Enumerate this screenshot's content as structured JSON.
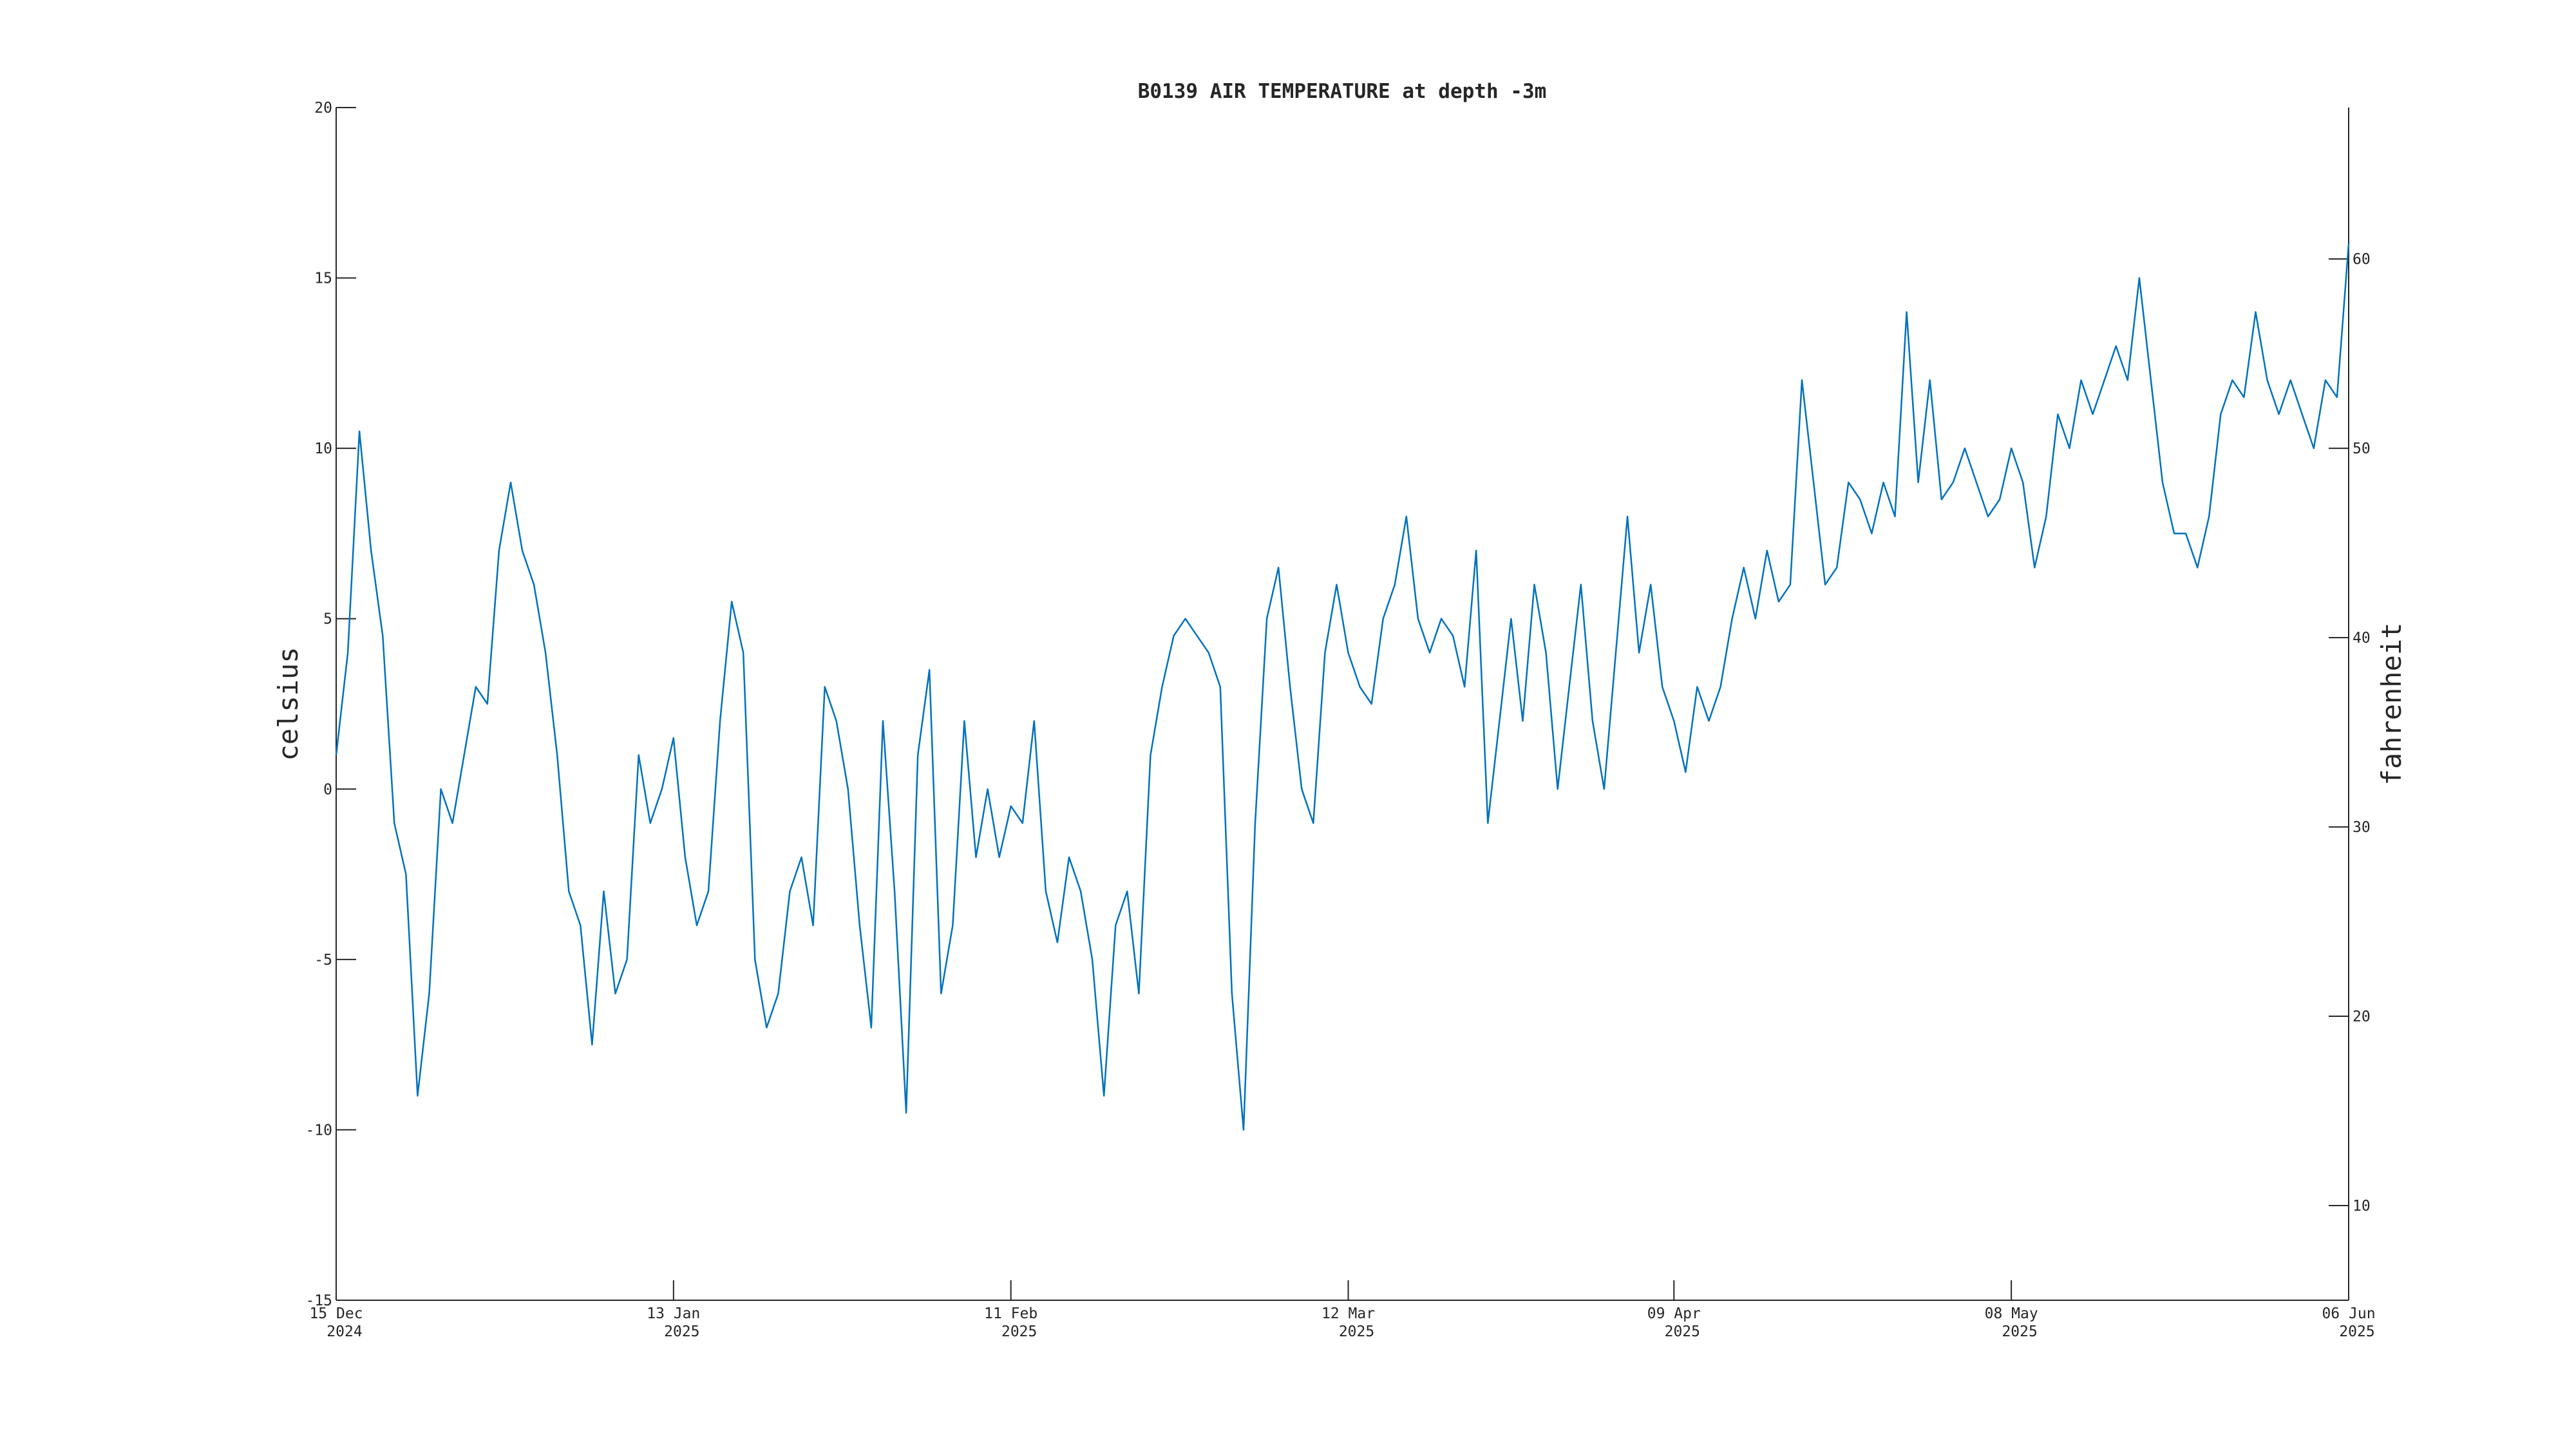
{
  "chart_data": {
    "type": "line",
    "title": "B0139 AIR TEMPERATURE at depth -3m",
    "ylabel": "celsius",
    "y2label": "fahrenheit",
    "xlim": [
      "2024-12-15",
      "2025-06-06"
    ],
    "xticks": [
      {
        "value": "2024-12-15",
        "label": "15 Dec\n2024"
      },
      {
        "value": "2025-01-13",
        "label": "13 Jan\n2025"
      },
      {
        "value": "2025-02-11",
        "label": "11 Feb\n2025"
      },
      {
        "value": "2025-03-12",
        "label": "12 Mar\n2025"
      },
      {
        "value": "2025-04-09",
        "label": "09 Apr\n2025"
      },
      {
        "value": "2025-05-08",
        "label": "08 May\n2025"
      },
      {
        "value": "2025-06-06",
        "label": "06 Jun\n2025"
      }
    ],
    "ylim": [
      -15,
      20
    ],
    "yticks": [
      -15,
      -10,
      -5,
      0,
      5,
      10,
      15,
      20
    ],
    "y2lim": [
      5,
      68
    ],
    "y2ticks": [
      10,
      20,
      30,
      40,
      50,
      60
    ],
    "x": [
      "2024-12-15",
      "2024-12-16",
      "2024-12-17",
      "2024-12-18",
      "2024-12-19",
      "2024-12-20",
      "2024-12-21",
      "2024-12-22",
      "2024-12-23",
      "2024-12-24",
      "2024-12-25",
      "2024-12-26",
      "2024-12-27",
      "2024-12-28",
      "2024-12-29",
      "2024-12-30",
      "2024-12-31",
      "2025-01-01",
      "2025-01-02",
      "2025-01-03",
      "2025-01-04",
      "2025-01-05",
      "2025-01-06",
      "2025-01-07",
      "2025-01-08",
      "2025-01-09",
      "2025-01-10",
      "2025-01-11",
      "2025-01-12",
      "2025-01-13",
      "2025-01-14",
      "2025-01-15",
      "2025-01-16",
      "2025-01-17",
      "2025-01-18",
      "2025-01-19",
      "2025-01-20",
      "2025-01-21",
      "2025-01-22",
      "2025-01-23",
      "2025-01-24",
      "2025-01-25",
      "2025-01-26",
      "2025-01-27",
      "2025-01-28",
      "2025-01-29",
      "2025-01-30",
      "2025-01-31",
      "2025-02-01",
      "2025-02-02",
      "2025-02-03",
      "2025-02-04",
      "2025-02-05",
      "2025-02-06",
      "2025-02-07",
      "2025-02-08",
      "2025-02-09",
      "2025-02-10",
      "2025-02-11",
      "2025-02-12",
      "2025-02-13",
      "2025-02-14",
      "2025-02-15",
      "2025-02-16",
      "2025-02-17",
      "2025-02-18",
      "2025-02-19",
      "2025-02-20",
      "2025-02-21",
      "2025-02-22",
      "2025-02-23",
      "2025-02-24",
      "2025-02-25",
      "2025-02-26",
      "2025-02-27",
      "2025-02-28",
      "2025-03-01",
      "2025-03-02",
      "2025-03-03",
      "2025-03-04",
      "2025-03-05",
      "2025-03-06",
      "2025-03-07",
      "2025-03-08",
      "2025-03-09",
      "2025-03-10",
      "2025-03-11",
      "2025-03-12",
      "2025-03-13",
      "2025-03-14",
      "2025-03-15",
      "2025-03-16",
      "2025-03-17",
      "2025-03-18",
      "2025-03-19",
      "2025-03-20",
      "2025-03-21",
      "2025-03-22",
      "2025-03-23",
      "2025-03-24",
      "2025-03-25",
      "2025-03-26",
      "2025-03-27",
      "2025-03-28",
      "2025-03-29",
      "2025-03-30",
      "2025-03-31",
      "2025-04-01",
      "2025-04-02",
      "2025-04-03",
      "2025-04-04",
      "2025-04-05",
      "2025-04-06",
      "2025-04-07",
      "2025-04-08",
      "2025-04-09",
      "2025-04-10",
      "2025-04-11",
      "2025-04-12",
      "2025-04-13",
      "2025-04-14",
      "2025-04-15",
      "2025-04-16",
      "2025-04-17",
      "2025-04-18",
      "2025-04-19",
      "2025-04-20",
      "2025-04-21",
      "2025-04-22",
      "2025-04-23",
      "2025-04-24",
      "2025-04-25",
      "2025-04-26",
      "2025-04-27",
      "2025-04-28",
      "2025-04-29",
      "2025-04-30",
      "2025-05-01",
      "2025-05-02",
      "2025-05-03",
      "2025-05-04",
      "2025-05-05",
      "2025-05-06",
      "2025-05-07",
      "2025-05-08",
      "2025-05-09",
      "2025-05-10",
      "2025-05-11",
      "2025-05-12",
      "2025-05-13",
      "2025-05-14",
      "2025-05-15",
      "2025-05-16",
      "2025-05-17",
      "2025-05-18",
      "2025-05-19",
      "2025-05-20",
      "2025-05-21",
      "2025-05-22",
      "2025-05-23",
      "2025-05-24",
      "2025-05-25",
      "2025-05-26",
      "2025-05-27",
      "2025-05-28",
      "2025-05-29",
      "2025-05-30",
      "2025-05-31",
      "2025-06-01",
      "2025-06-02",
      "2025-06-03",
      "2025-06-04",
      "2025-06-05",
      "2025-06-06"
    ],
    "series": [
      {
        "name": "celsius",
        "color": "#0072bd",
        "values": [
          1,
          4,
          10.5,
          7,
          4.5,
          -1,
          -2.5,
          -9,
          -6,
          0,
          -1,
          1,
          3,
          2.5,
          7,
          9,
          7,
          6,
          4,
          1,
          -3,
          -4,
          -7.5,
          -3,
          -6,
          -5,
          1,
          -1,
          0,
          1.5,
          -2,
          -4,
          -3,
          2,
          5.5,
          4,
          -5,
          -7,
          -6,
          -3,
          -2,
          -4,
          3,
          2,
          0,
          -4,
          -7,
          2,
          -3,
          -9.5,
          1,
          3.5,
          -6,
          -4,
          2,
          -2,
          0,
          -2,
          -0.5,
          -1,
          2,
          -3,
          -4.5,
          -2,
          -3,
          -5,
          -9,
          -4,
          -3,
          -6,
          1,
          3,
          4.5,
          5,
          4.5,
          4,
          3,
          -6,
          -10,
          -1,
          5,
          6.5,
          3,
          0,
          -1,
          4,
          6,
          4,
          3,
          2.5,
          5,
          6,
          8,
          5,
          4,
          5,
          4.5,
          3,
          7,
          -1,
          2,
          5,
          2,
          6,
          4,
          0,
          3,
          6,
          2,
          0,
          4,
          8,
          4,
          6,
          3,
          2,
          0.5,
          3,
          2,
          3,
          5,
          6.5,
          5,
          7,
          5.5,
          6,
          12,
          9,
          6,
          6.5,
          9,
          8.5,
          7.5,
          9,
          8,
          14,
          9,
          12,
          8.5,
          9,
          10,
          9,
          8,
          8.5,
          10,
          9,
          6.5,
          8,
          11,
          10,
          12,
          11,
          12,
          13,
          12,
          15,
          12,
          9,
          7.5,
          7.5,
          6.5,
          8,
          11,
          12,
          11.5,
          14,
          12,
          11,
          12,
          11,
          10,
          12,
          11.5,
          16
        ]
      }
    ]
  }
}
